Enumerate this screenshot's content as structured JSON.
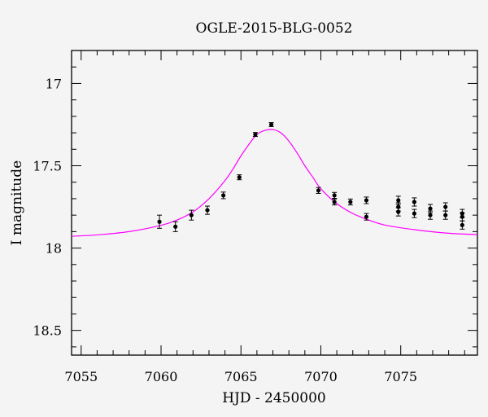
{
  "chart_data": {
    "type": "scatter",
    "title": "OGLE-2015-BLG-0052",
    "xlabel": "HJD - 2450000",
    "ylabel": "I magnitude",
    "xlim": [
      7054.4,
      7079.8
    ],
    "ylim": [
      18.65,
      16.8
    ],
    "y_inverted": true,
    "x_ticks": [
      7055,
      7060,
      7065,
      7070,
      7075
    ],
    "x_tick_labels": [
      "7055",
      "7060",
      "7065",
      "7070",
      "7075"
    ],
    "y_ticks": [
      17,
      17.5,
      18,
      18.5
    ],
    "y_tick_labels": [
      "17",
      "17.5",
      "18",
      "18.5"
    ],
    "grid": false,
    "colors": {
      "data": "#000000",
      "model": "#ff00ff"
    },
    "series": [
      {
        "kind": "points_with_errorbars",
        "points": [
          {
            "x": 7059.9,
            "y": 17.84,
            "err": 0.04
          },
          {
            "x": 7060.9,
            "y": 17.87,
            "err": 0.03
          },
          {
            "x": 7061.9,
            "y": 17.8,
            "err": 0.03
          },
          {
            "x": 7062.9,
            "y": 17.77,
            "err": 0.025
          },
          {
            "x": 7063.9,
            "y": 17.68,
            "err": 0.02
          },
          {
            "x": 7064.9,
            "y": 17.57,
            "err": 0.015
          },
          {
            "x": 7065.9,
            "y": 17.31,
            "err": 0.012
          },
          {
            "x": 7066.9,
            "y": 17.25,
            "err": 0.012
          },
          {
            "x": 7069.85,
            "y": 17.65,
            "err": 0.018
          },
          {
            "x": 7070.85,
            "y": 17.68,
            "err": 0.018
          },
          {
            "x": 7070.85,
            "y": 17.72,
            "err": 0.018
          },
          {
            "x": 7071.85,
            "y": 17.72,
            "err": 0.018
          },
          {
            "x": 7072.85,
            "y": 17.71,
            "err": 0.02
          },
          {
            "x": 7072.85,
            "y": 17.81,
            "err": 0.02
          },
          {
            "x": 7074.85,
            "y": 17.71,
            "err": 0.025
          },
          {
            "x": 7074.85,
            "y": 17.75,
            "err": 0.025
          },
          {
            "x": 7074.85,
            "y": 17.78,
            "err": 0.025
          },
          {
            "x": 7075.85,
            "y": 17.72,
            "err": 0.025
          },
          {
            "x": 7075.85,
            "y": 17.79,
            "err": 0.025
          },
          {
            "x": 7076.85,
            "y": 17.76,
            "err": 0.025
          },
          {
            "x": 7076.85,
            "y": 17.8,
            "err": 0.025
          },
          {
            "x": 7077.8,
            "y": 17.75,
            "err": 0.025
          },
          {
            "x": 7077.8,
            "y": 17.8,
            "err": 0.025
          },
          {
            "x": 7078.85,
            "y": 17.79,
            "err": 0.025
          },
          {
            "x": 7078.85,
            "y": 17.81,
            "err": 0.025
          },
          {
            "x": 7078.85,
            "y": 17.86,
            "err": 0.025
          }
        ]
      },
      {
        "kind": "model_curve",
        "x": [
          7054.4,
          7056,
          7058,
          7060,
          7061,
          7062,
          7063,
          7064,
          7064.5,
          7065,
          7065.5,
          7066,
          7066.5,
          7067,
          7067.5,
          7068,
          7068.5,
          7069,
          7069.5,
          7070,
          7071,
          7072,
          7073,
          7074,
          7076,
          7078,
          7079.8
        ],
        "y": [
          17.928,
          17.92,
          17.9,
          17.862,
          17.83,
          17.78,
          17.7,
          17.59,
          17.52,
          17.44,
          17.37,
          17.31,
          17.285,
          17.28,
          17.3,
          17.35,
          17.42,
          17.5,
          17.57,
          17.64,
          17.73,
          17.79,
          17.83,
          17.86,
          17.89,
          17.91,
          17.918
        ]
      }
    ]
  }
}
